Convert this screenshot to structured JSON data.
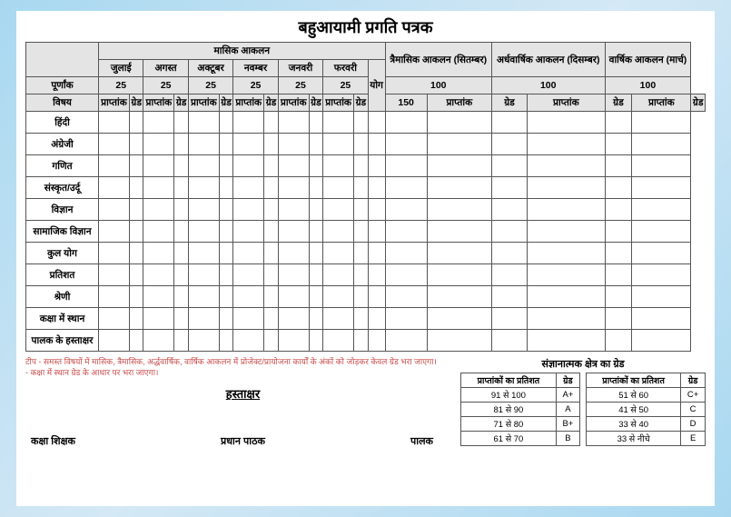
{
  "title": "बहुआयामी प्रगति पत्रक",
  "headers": {
    "monthly": "मासिक आकलन",
    "quarterly": "त्रैमासिक आकलन (सितम्बर)",
    "halfyearly": "अर्धवार्षिक आकलन (दिसम्बर)",
    "yearly": "वार्षिक आकलन (मार्च)",
    "months": [
      "जुलाई",
      "अगस्त",
      "अक्टूबर",
      "नवम्बर",
      "जनवरी",
      "फरवरी"
    ],
    "yog": "योग",
    "purnank": "पूर्णांक",
    "vishay": "विषय",
    "praptank": "प्राप्तांक",
    "grade": "ग्रेड",
    "m25": "25",
    "m150": "150",
    "m100": "100"
  },
  "subjects": [
    "हिंदी",
    "अंग्रेजी",
    "गणित",
    "संस्कृत/उर्दू",
    "विज्ञान",
    "सामाजिक विज्ञान",
    "कुल योग",
    "प्रतिशत",
    "श्रेणी",
    "कक्षा में स्थान",
    "पालक के हस्ताक्षर"
  ],
  "note1": "टीप - समस्त विषयों में मासिक, त्रैमासिक, अर्द्धवार्षिक, वार्षिक आकलन में प्रोजेक्ट/प्रायोजना कार्यों के अंकों को जोड़कर केवल ग्रेड भरा जाएगा।",
  "note2": "- कक्षा में स्थान ग्रेड के आधार पर भरा जाएगा।",
  "sign_heading": "हस्ताक्षर",
  "sign1": "कक्षा शिक्षक",
  "sign2": "प्रधान पाठक",
  "sign3": "पालक",
  "grade_title": "संज्ञानात्मक क्षेत्र का ग्रेड",
  "grade_h1": "प्राप्तांकों का प्रतिशत",
  "grade_h2": "ग्रेड",
  "grades1": [
    {
      "r": "91 से 100",
      "g": "A+"
    },
    {
      "r": "81 से 90",
      "g": "A"
    },
    {
      "r": "71 से 80",
      "g": "B+"
    },
    {
      "r": "61 से 70",
      "g": "B"
    }
  ],
  "grades2": [
    {
      "r": "51 से 60",
      "g": "C+"
    },
    {
      "r": "41 से 50",
      "g": "C"
    },
    {
      "r": "33 से 40",
      "g": "D"
    },
    {
      "r": "33 से नीचे",
      "g": "E"
    }
  ]
}
